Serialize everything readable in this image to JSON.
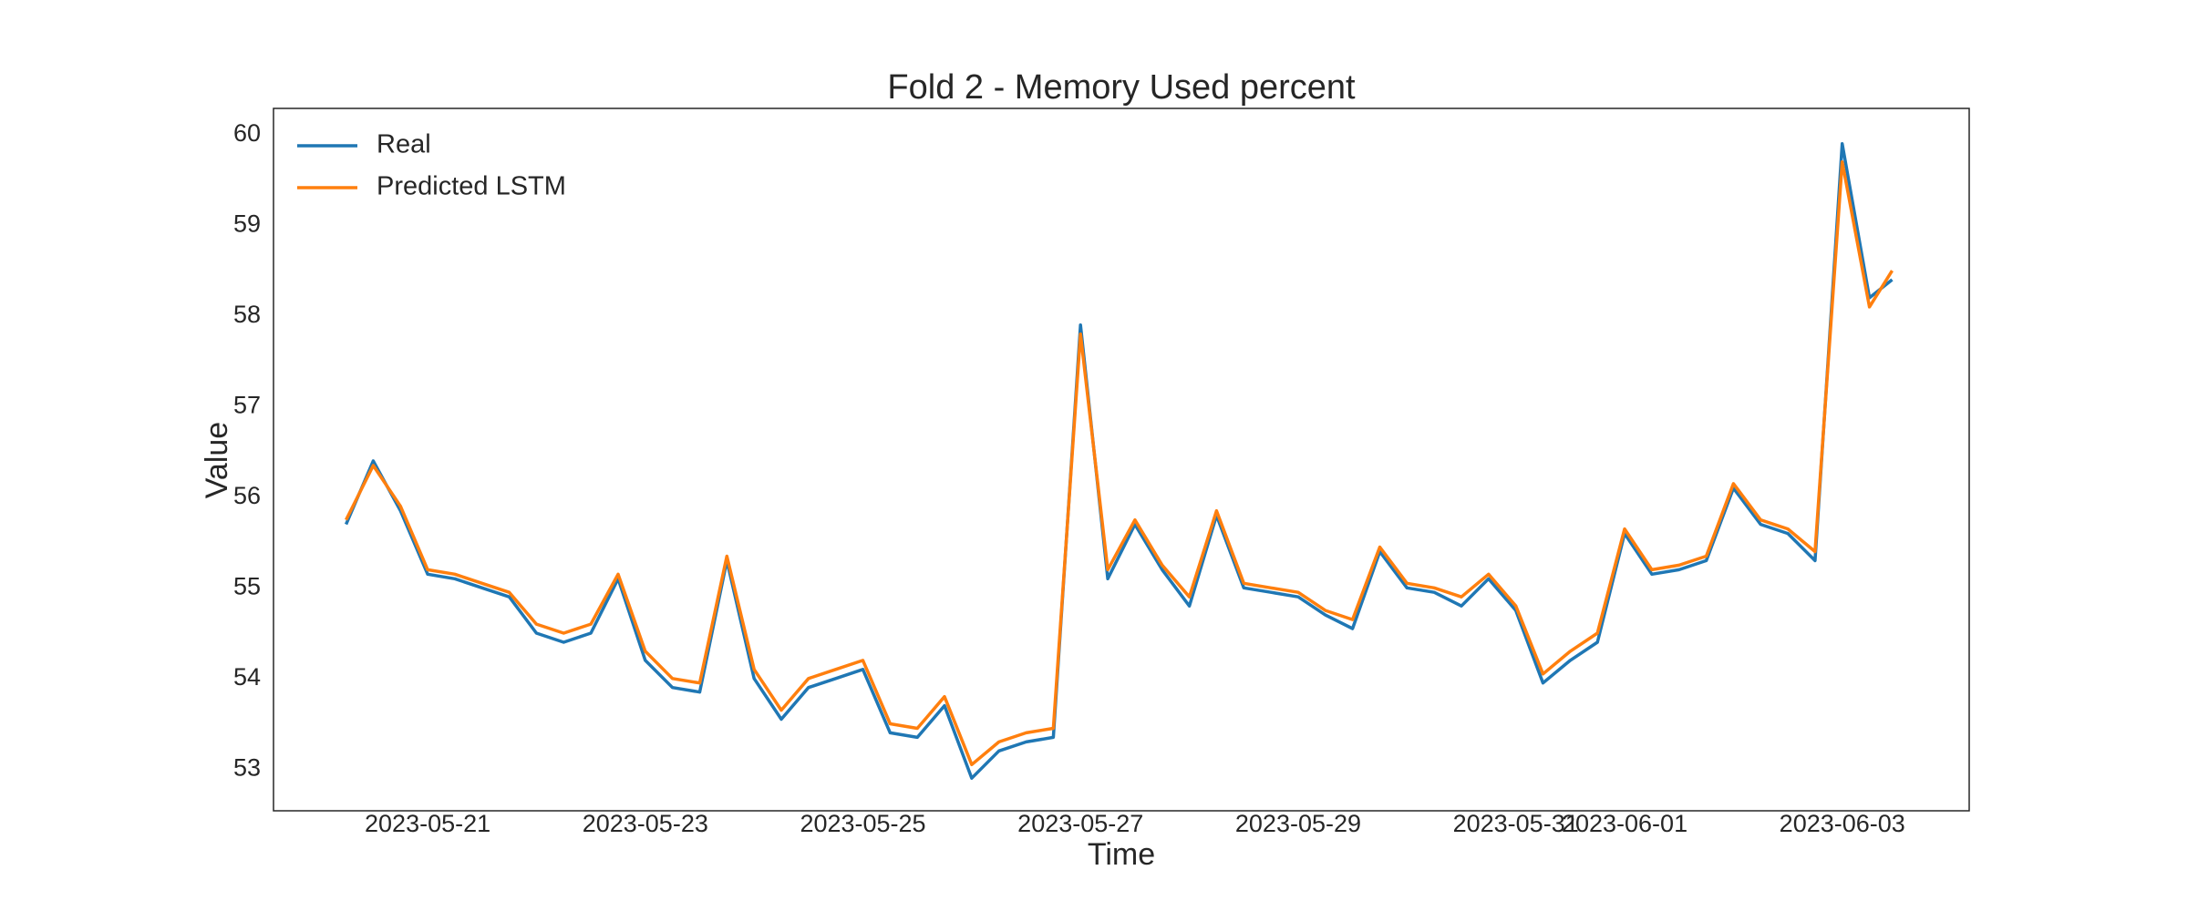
{
  "chart_data": {
    "type": "line",
    "title": "Fold 2 - Memory Used percent",
    "x_label": "Time",
    "y_label": "Value",
    "x": [
      "2023-05-20 06:00",
      "2023-05-20 12:00",
      "2023-05-20 18:00",
      "2023-05-21 00:00",
      "2023-05-21 06:00",
      "2023-05-21 12:00",
      "2023-05-21 18:00",
      "2023-05-22 00:00",
      "2023-05-22 06:00",
      "2023-05-22 12:00",
      "2023-05-22 18:00",
      "2023-05-23 00:00",
      "2023-05-23 06:00",
      "2023-05-23 12:00",
      "2023-05-23 18:00",
      "2023-05-24 00:00",
      "2023-05-24 06:00",
      "2023-05-24 12:00",
      "2023-05-24 18:00",
      "2023-05-25 00:00",
      "2023-05-25 06:00",
      "2023-05-25 12:00",
      "2023-05-25 18:00",
      "2023-05-26 00:00",
      "2023-05-26 06:00",
      "2023-05-26 12:00",
      "2023-05-26 18:00",
      "2023-05-27 00:00",
      "2023-05-27 06:00",
      "2023-05-27 12:00",
      "2023-05-27 18:00",
      "2023-05-28 00:00",
      "2023-05-28 06:00",
      "2023-05-28 12:00",
      "2023-05-28 18:00",
      "2023-05-29 00:00",
      "2023-05-29 06:00",
      "2023-05-29 12:00",
      "2023-05-29 18:00",
      "2023-05-30 00:00",
      "2023-05-30 06:00",
      "2023-05-30 12:00",
      "2023-05-30 18:00",
      "2023-05-31 00:00",
      "2023-05-31 06:00",
      "2023-05-31 12:00",
      "2023-05-31 18:00",
      "2023-06-01 00:00",
      "2023-06-01 06:00",
      "2023-06-01 12:00",
      "2023-06-01 18:00",
      "2023-06-02 00:00",
      "2023-06-02 06:00",
      "2023-06-02 12:00",
      "2023-06-02 18:00",
      "2023-06-03 00:00",
      "2023-06-03 06:00",
      "2023-06-03 11:00"
    ],
    "series": [
      {
        "name": "Real",
        "color": "#1f77b4",
        "values": [
          55.7,
          56.4,
          55.85,
          55.15,
          55.1,
          55.0,
          54.9,
          54.5,
          54.4,
          54.5,
          55.1,
          54.2,
          53.9,
          53.85,
          55.3,
          54.0,
          53.55,
          53.9,
          54.0,
          54.1,
          53.4,
          53.35,
          53.7,
          52.9,
          53.2,
          53.3,
          53.35,
          57.9,
          55.1,
          55.7,
          55.2,
          54.8,
          55.8,
          55.0,
          54.95,
          54.9,
          54.7,
          54.55,
          55.4,
          55.0,
          54.95,
          54.8,
          55.1,
          54.75,
          53.95,
          54.2,
          54.4,
          55.6,
          55.15,
          55.2,
          55.3,
          56.1,
          55.7,
          55.6,
          55.3,
          59.9,
          58.2,
          58.4
        ]
      },
      {
        "name": "Predicted LSTM",
        "color": "#ff7f0e",
        "values": [
          55.75,
          56.35,
          55.9,
          55.2,
          55.15,
          55.05,
          54.95,
          54.6,
          54.5,
          54.6,
          55.15,
          54.3,
          54.0,
          53.95,
          55.35,
          54.1,
          53.65,
          54.0,
          54.1,
          54.2,
          53.5,
          53.45,
          53.8,
          53.05,
          53.3,
          53.4,
          53.45,
          57.8,
          55.2,
          55.75,
          55.25,
          54.9,
          55.85,
          55.05,
          55.0,
          54.95,
          54.75,
          54.65,
          55.45,
          55.05,
          55.0,
          54.9,
          55.15,
          54.8,
          54.05,
          54.3,
          54.5,
          55.65,
          55.2,
          55.25,
          55.35,
          56.15,
          55.75,
          55.65,
          55.4,
          59.7,
          58.1,
          58.5
        ]
      }
    ],
    "xlim": [
      "2023-05-19 14:00",
      "2023-06-04 04:00"
    ],
    "xticks": [
      "2023-05-21",
      "2023-05-23",
      "2023-05-25",
      "2023-05-27",
      "2023-05-29",
      "2023-05-31",
      "2023-06-01",
      "2023-06-03"
    ],
    "ylim": [
      52.54,
      60.29
    ],
    "yticks": [
      53,
      54,
      55,
      56,
      57,
      58,
      59,
      60
    ],
    "grid": false,
    "legend": "upper left"
  }
}
